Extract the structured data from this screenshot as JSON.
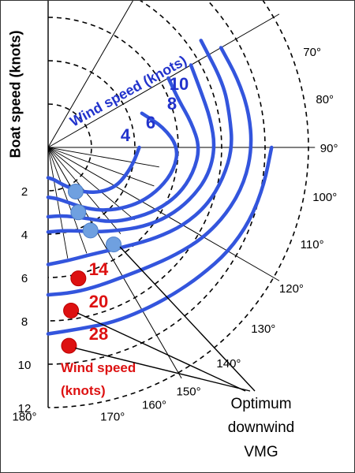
{
  "chart_data": {
    "type": "polar",
    "title": "",
    "ylabel": "Boat speed (knots)",
    "radial_ticks": [
      "2",
      "4",
      "6",
      "8",
      "10",
      "12"
    ],
    "radial_range": [
      0,
      12
    ],
    "angle_labels": [
      "70°",
      "80°",
      "90°",
      "100°",
      "110°",
      "120°",
      "130°",
      "140°",
      "150°",
      "160°",
      "170°",
      "180°"
    ],
    "angle_degrees": [
      70,
      80,
      90,
      100,
      110,
      120,
      130,
      140,
      150,
      160,
      170,
      180
    ],
    "wind_speed_label_top": "Wind speed (knots)",
    "wind_speed_label_bottom": "Wind speed\n(knots)",
    "annotation": "Optimum downwind VMG",
    "series": [
      {
        "name": "4",
        "color": "#3355dd",
        "label_color": "#2233cc",
        "points": [
          [
            90,
            4.2
          ],
          [
            100,
            4.0
          ],
          [
            110,
            3.8
          ],
          [
            120,
            3.6
          ],
          [
            130,
            3.2
          ],
          [
            140,
            2.7
          ],
          [
            150,
            2.2
          ],
          [
            160,
            1.8
          ],
          [
            170,
            1.5
          ],
          [
            180,
            1.4
          ]
        ]
      },
      {
        "name": "6",
        "color": "#3355dd",
        "label_color": "#2233cc",
        "points": [
          [
            70,
            4.6
          ],
          [
            80,
            5.4
          ],
          [
            90,
            6.0
          ],
          [
            100,
            5.9
          ],
          [
            110,
            5.5
          ],
          [
            120,
            5.0
          ],
          [
            130,
            4.4
          ],
          [
            140,
            3.8
          ],
          [
            150,
            3.2
          ],
          [
            160,
            2.7
          ],
          [
            170,
            2.4
          ],
          [
            180,
            2.3
          ]
        ]
      },
      {
        "name": "8",
        "color": "#3355dd",
        "label_color": "#2233cc",
        "points": [
          [
            60,
            6.4
          ],
          [
            70,
            6.4
          ],
          [
            80,
            6.7
          ],
          [
            90,
            7.0
          ],
          [
            100,
            6.8
          ],
          [
            110,
            6.4
          ],
          [
            120,
            5.8
          ],
          [
            130,
            5.1
          ],
          [
            140,
            4.5
          ],
          [
            150,
            3.8
          ],
          [
            160,
            3.4
          ],
          [
            170,
            3.2
          ],
          [
            180,
            3.2
          ]
        ]
      },
      {
        "name": "10",
        "color": "#3355dd",
        "label_color": "#2233cc",
        "points": [
          [
            60,
            7.6
          ],
          [
            70,
            7.5
          ],
          [
            80,
            7.6
          ],
          [
            90,
            7.7
          ],
          [
            100,
            7.5
          ],
          [
            110,
            7.0
          ],
          [
            120,
            6.4
          ],
          [
            130,
            5.7
          ],
          [
            140,
            5.0
          ],
          [
            150,
            4.5
          ],
          [
            160,
            4.1
          ],
          [
            170,
            3.9
          ],
          [
            180,
            3.9
          ]
        ]
      },
      {
        "name": "14",
        "color": "#3355dd",
        "label_color": "#dd1111",
        "points": [
          [
            55,
            8.6
          ],
          [
            70,
            8.6
          ],
          [
            80,
            8.5
          ],
          [
            90,
            8.5
          ],
          [
            100,
            8.2
          ],
          [
            110,
            7.8
          ],
          [
            120,
            7.2
          ],
          [
            130,
            6.5
          ],
          [
            140,
            5.9
          ],
          [
            150,
            5.5
          ],
          [
            160,
            5.3
          ],
          [
            170,
            5.3
          ],
          [
            180,
            5.4
          ]
        ]
      },
      {
        "name": "20",
        "color": "#3355dd",
        "label_color": "#dd1111",
        "points": [
          [
            60,
            9.2
          ],
          [
            70,
            9.3
          ],
          [
            80,
            9.4
          ],
          [
            90,
            9.4
          ],
          [
            100,
            9.2
          ],
          [
            110,
            8.8
          ],
          [
            120,
            8.3
          ],
          [
            130,
            7.7
          ],
          [
            140,
            7.2
          ],
          [
            150,
            6.9
          ],
          [
            160,
            6.8
          ],
          [
            170,
            6.8
          ],
          [
            180,
            6.8
          ]
        ]
      },
      {
        "name": "28",
        "color": "#3355dd",
        "label_color": "#dd1111",
        "points": [
          [
            90,
            10.3
          ],
          [
            100,
            10.1
          ],
          [
            110,
            9.9
          ],
          [
            120,
            9.6
          ],
          [
            130,
            9.2
          ],
          [
            140,
            8.9
          ],
          [
            150,
            8.7
          ],
          [
            160,
            8.6
          ],
          [
            170,
            8.5
          ],
          [
            180,
            8.6
          ]
        ]
      }
    ],
    "optimum_points": [
      {
        "series": "4",
        "angle": 148,
        "speed": 2.4,
        "color": "#6fa0e0"
      },
      {
        "series": "6",
        "angle": 155,
        "speed": 3.3,
        "color": "#6fa0e0"
      },
      {
        "series": "8",
        "angle": 153,
        "speed": 4.3,
        "color": "#6fa0e0"
      },
      {
        "series": "10",
        "angle": 146,
        "speed": 5.4,
        "color": "#6fa0e0"
      },
      {
        "series": "14",
        "angle": 167,
        "speed": 6.2,
        "color": "#dd1111"
      },
      {
        "series": "20",
        "angle": 172,
        "speed": 7.6,
        "color": "#dd1111"
      },
      {
        "series": "28",
        "angle": 174,
        "speed": 9.2,
        "color": "#dd1111"
      }
    ]
  }
}
